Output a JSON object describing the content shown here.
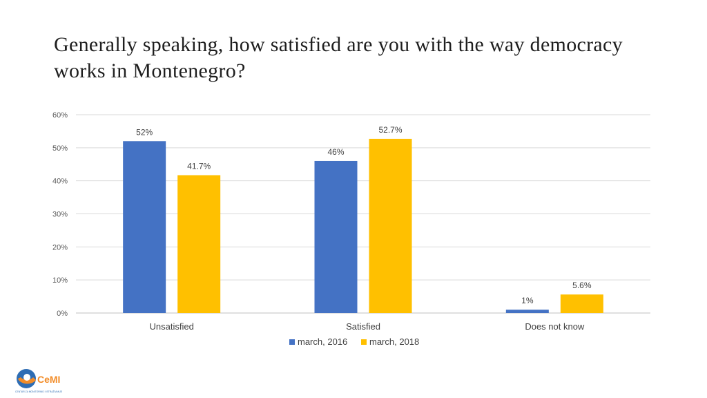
{
  "title": "Generally speaking, how satisfied are you with the way democracy works in Montenegro?",
  "logo": {
    "brand_text": "CeMI",
    "caption_text": "CENTAR ZA MONITORING I ISTRAŽIVANJE"
  },
  "chart_data": {
    "type": "bar",
    "categories": [
      "Unsatisfied",
      "Satisfied",
      "Does not know"
    ],
    "series": [
      {
        "name": "march, 2016",
        "color": "#4472C4",
        "values": [
          52,
          46,
          1
        ],
        "labels": [
          "52%",
          "46%",
          "1%"
        ]
      },
      {
        "name": "march, 2018",
        "color": "#FFC000",
        "values": [
          41.7,
          52.7,
          5.6
        ],
        "labels": [
          "41.7%",
          "52.7%",
          "5.6%"
        ]
      }
    ],
    "ylim": [
      0,
      60
    ],
    "yticks": [
      0,
      10,
      20,
      30,
      40,
      50,
      60
    ],
    "ytick_labels": [
      "0%",
      "10%",
      "20%",
      "30%",
      "40%",
      "50%",
      "60%"
    ],
    "grid": true,
    "legend_position": "bottom"
  }
}
